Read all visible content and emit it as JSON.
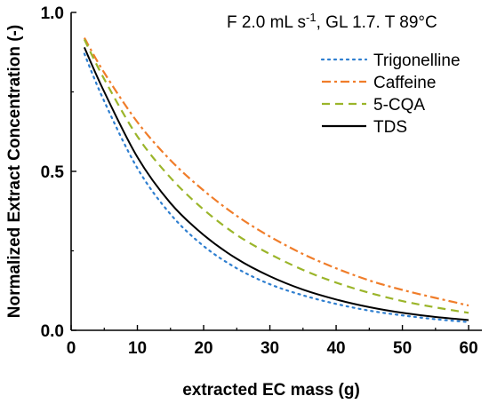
{
  "chart_data": {
    "type": "line",
    "annotation": {
      "prefix": "F 2.0 mL s",
      "superscript": "-1",
      "suffix": ", GL 1.7. T 89°C"
    },
    "xlabel": "extracted EC mass (g)",
    "ylabel": "Normalized Extract Concentration (-)",
    "xlim": [
      0,
      62
    ],
    "ylim": [
      0,
      1.0
    ],
    "x_ticks": [
      0,
      10,
      20,
      30,
      40,
      50,
      60
    ],
    "x_tick_labels": [
      "0",
      "10",
      "20",
      "30",
      "40",
      "50",
      "60"
    ],
    "y_ticks": [
      0.0,
      0.5,
      1.0
    ],
    "y_tick_labels": [
      "0.0",
      "0.5",
      "1.0"
    ],
    "grid": false,
    "legend_position": "top-right",
    "series": [
      {
        "name": "Trigonelline",
        "color": "#2f7fd0",
        "dash": "dotted",
        "x": [
          2,
          5,
          10,
          15,
          20,
          25,
          30,
          35,
          40,
          45,
          50,
          55,
          60
        ],
        "y": [
          0.87,
          0.72,
          0.51,
          0.365,
          0.265,
          0.195,
          0.145,
          0.11,
          0.083,
          0.062,
          0.047,
          0.035,
          0.026
        ]
      },
      {
        "name": "Caffeine",
        "color": "#f07d2a",
        "dash": "dashdot",
        "x": [
          2,
          5,
          10,
          15,
          20,
          25,
          30,
          35,
          40,
          45,
          50,
          55,
          60
        ],
        "y": [
          0.92,
          0.81,
          0.655,
          0.535,
          0.44,
          0.36,
          0.295,
          0.24,
          0.195,
          0.157,
          0.127,
          0.102,
          0.078
        ]
      },
      {
        "name": "5-CQA",
        "color": "#9bb52a",
        "dash": "dashed",
        "x": [
          2,
          5,
          10,
          15,
          20,
          25,
          30,
          35,
          40,
          45,
          50,
          55,
          60
        ],
        "y": [
          0.915,
          0.79,
          0.61,
          0.48,
          0.38,
          0.3,
          0.24,
          0.19,
          0.15,
          0.118,
          0.092,
          0.072,
          0.055
        ]
      },
      {
        "name": "TDS",
        "color": "#000000",
        "dash": "solid",
        "x": [
          2,
          5,
          10,
          15,
          20,
          25,
          30,
          35,
          40,
          45,
          50,
          55,
          60
        ],
        "y": [
          0.89,
          0.75,
          0.545,
          0.4,
          0.3,
          0.225,
          0.17,
          0.128,
          0.097,
          0.073,
          0.055,
          0.042,
          0.032
        ]
      }
    ]
  }
}
